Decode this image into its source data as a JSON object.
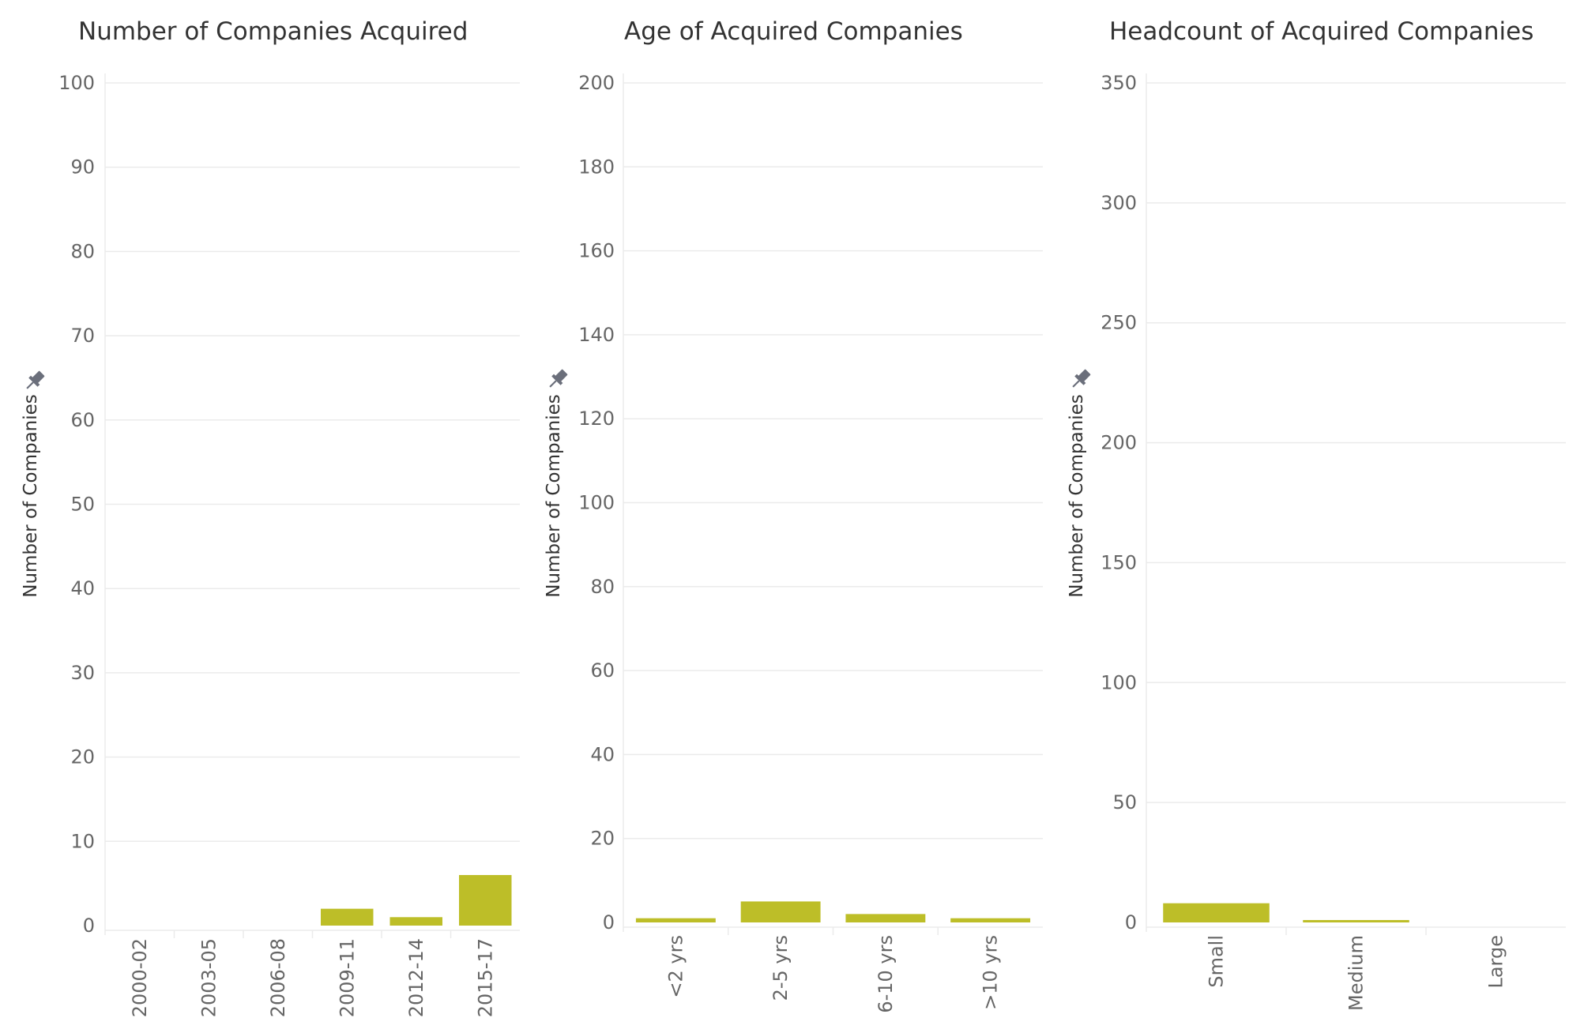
{
  "colors": {
    "bar": "#BDBE28",
    "grid": "#EBEBEB",
    "axis_text": "#666666",
    "title_text": "#333333",
    "pin_icon": "#6B6F7B"
  },
  "chart_data": [
    {
      "type": "bar",
      "title": "Number of Companies Acquired",
      "ylabel": "Number of Companies",
      "xlabel": "",
      "ylim": [
        0,
        100
      ],
      "yticks": [
        0,
        10,
        20,
        30,
        40,
        50,
        60,
        70,
        80,
        90,
        100
      ],
      "categories": [
        "2000-02",
        "2003-05",
        "2006-08",
        "2009-11",
        "2012-14",
        "2015-17"
      ],
      "values": [
        0,
        0,
        0,
        2,
        1,
        6
      ],
      "xtick_rotated": true,
      "grid": true,
      "pin_icon": "pin-icon"
    },
    {
      "type": "bar",
      "title": "Age of Acquired Companies",
      "ylabel": "Number of Companies",
      "xlabel": "",
      "ylim": [
        0,
        200
      ],
      "yticks": [
        0,
        20,
        40,
        60,
        80,
        100,
        120,
        140,
        160,
        180,
        200
      ],
      "categories": [
        "<2 yrs",
        "2-5 yrs",
        "6-10 yrs",
        ">10 yrs"
      ],
      "values": [
        1,
        5,
        2,
        1
      ],
      "xtick_rotated": true,
      "grid": true,
      "pin_icon": "pin-icon"
    },
    {
      "type": "bar",
      "title": "Headcount of Acquired Companies",
      "ylabel": "Number of Companies",
      "xlabel": "",
      "ylim": [
        0,
        350
      ],
      "yticks": [
        0,
        50,
        100,
        150,
        200,
        250,
        300,
        350
      ],
      "categories": [
        "Small",
        "Medium",
        "Large"
      ],
      "values": [
        8,
        1,
        0
      ],
      "xtick_rotated": true,
      "grid": true,
      "pin_icon": "pin-icon"
    }
  ]
}
